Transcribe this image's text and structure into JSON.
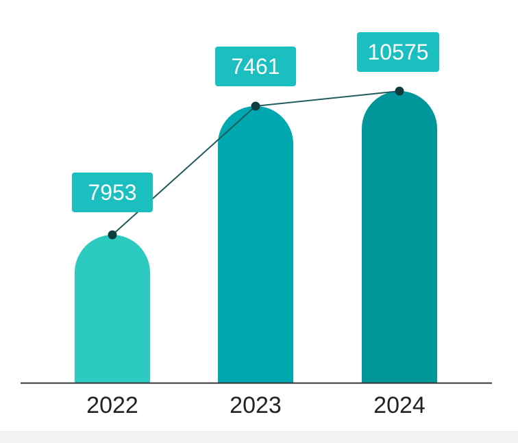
{
  "chart_data": {
    "type": "bar",
    "categories": [
      "2022",
      "2023",
      "2024"
    ],
    "values": [
      7953,
      7461,
      10575
    ],
    "bar_colors": [
      "#2ccac0",
      "#00a8b0",
      "#00969a"
    ],
    "badge_color": "#1bbfbf",
    "line_color": "#1f5a5c",
    "axis_color": "#333333",
    "title": "",
    "xlabel": "",
    "ylabel": "",
    "grid": false,
    "legend": "none",
    "overlay": "line connecting bar tops"
  }
}
